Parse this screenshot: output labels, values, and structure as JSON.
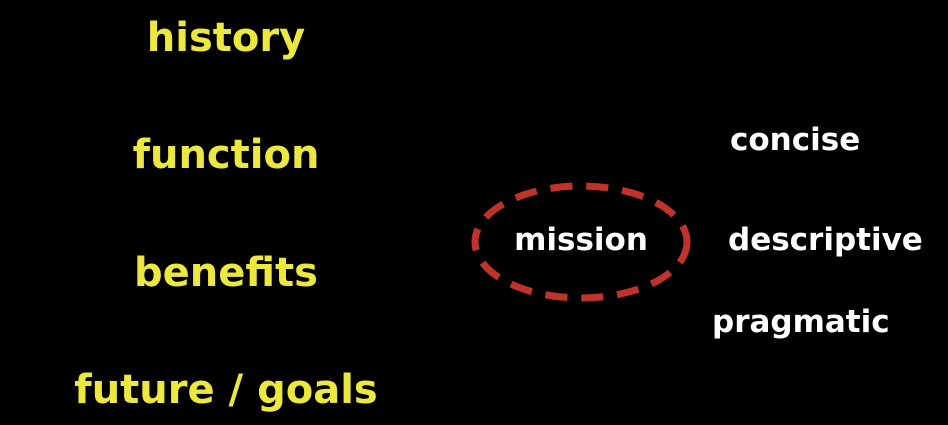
{
  "left_terms": [
    "history",
    "function",
    "benefits",
    "future / goals"
  ],
  "center": {
    "term": "mission",
    "outline_color": "#c0332b"
  },
  "right_terms": [
    "concise",
    "descriptive",
    "pragmatic"
  ],
  "colors": {
    "background": "#000000",
    "left_text": "#ece83e",
    "right_text": "#ffffff"
  }
}
